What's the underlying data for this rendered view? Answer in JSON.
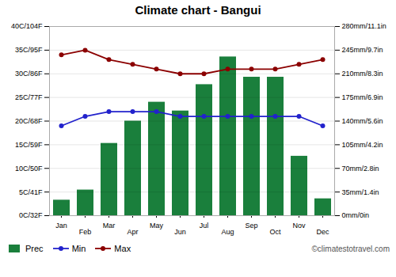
{
  "chart_data": {
    "type": "bar",
    "title": "Climate chart - Bangui",
    "categories": [
      "Jan",
      "Feb",
      "Mar",
      "Apr",
      "May",
      "Jun",
      "Jul",
      "Aug",
      "Sep",
      "Oct",
      "Nov",
      "Dec"
    ],
    "series": [
      {
        "name": "Prec",
        "type": "bar",
        "axis": "y2",
        "color": "#1a7f3c",
        "values": [
          23,
          38,
          107,
          140,
          168,
          155,
          194,
          235,
          205,
          205,
          88,
          25
        ]
      },
      {
        "name": "Min",
        "type": "line",
        "marker": "circle",
        "color": "#2222cc",
        "values": [
          19,
          21,
          22,
          22,
          22,
          21,
          21,
          21,
          21,
          21,
          21,
          19
        ]
      },
      {
        "name": "Max",
        "type": "line",
        "marker": "circle",
        "color": "#8b0000",
        "values": [
          34,
          35,
          33,
          32,
          31,
          30,
          30,
          31,
          31,
          31,
          32,
          33
        ]
      }
    ],
    "ylim": [
      0,
      40
    ],
    "yticks": [
      {
        "value": 0,
        "label": "0C/32F"
      },
      {
        "value": 5,
        "label": "5C/41F"
      },
      {
        "value": 10,
        "label": "10C/50F"
      },
      {
        "value": 15,
        "label": "15C/59F"
      },
      {
        "value": 20,
        "label": "20C/68F"
      },
      {
        "value": 25,
        "label": "25C/77F"
      },
      {
        "value": 30,
        "label": "30C/86F"
      },
      {
        "value": 35,
        "label": "35C/95F"
      },
      {
        "value": 40,
        "label": "40C/104F"
      }
    ],
    "y2lim": [
      0,
      280
    ],
    "y2ticks": [
      {
        "value": 0,
        "label": "0mm/0in"
      },
      {
        "value": 35,
        "label": "35mm/1.4in"
      },
      {
        "value": 70,
        "label": "70mm/2.8in"
      },
      {
        "value": 105,
        "label": "105mm/4.2in"
      },
      {
        "value": 140,
        "label": "140mm/5.6in"
      },
      {
        "value": 175,
        "label": "175mm/6.9in"
      },
      {
        "value": 210,
        "label": "210mm/8.3in"
      },
      {
        "value": 245,
        "label": "245mm/9.7in"
      },
      {
        "value": 280,
        "label": "280mm/11.1in"
      }
    ],
    "grid": true,
    "legend": "lower left",
    "annotations": [
      "©climatestotravel.com"
    ]
  }
}
